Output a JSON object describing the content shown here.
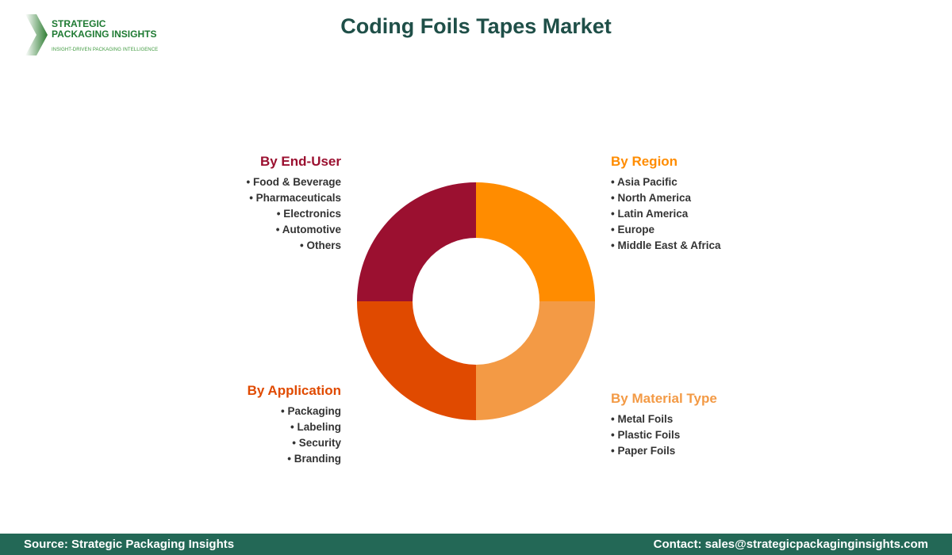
{
  "title": "Coding Foils Tapes Market",
  "logo": {
    "line1": "STRATEGIC",
    "line2": "PACKAGING INSIGHTS",
    "tagline": "INSIGHT-DRIVEN PACKAGING INTELLIGENCE"
  },
  "colors": {
    "region": "#FF8C00",
    "material": "#F39A45",
    "application": "#E04A00",
    "end_user": "#9B1030",
    "footer": "#236856",
    "title": "#1f4f48"
  },
  "segments": {
    "end_user": {
      "title": "By End-User",
      "items": [
        "Food & Beverage",
        "Pharmaceuticals",
        "Electronics",
        "Automotive",
        "Others"
      ]
    },
    "region": {
      "title": "By Region",
      "items": [
        "Asia Pacific",
        "North America",
        "Latin America",
        "Europe",
        "Middle East & Africa"
      ]
    },
    "application": {
      "title": "By Application",
      "items": [
        "Packaging",
        "Labeling",
        "Security",
        "Branding"
      ]
    },
    "material": {
      "title": "By Material Type",
      "items": [
        "Metal Foils",
        "Plastic Foils",
        "Paper Foils"
      ]
    }
  },
  "footer": {
    "source": "Source: Strategic Packaging Insights",
    "contact": "Contact: sales@strategicpackaginginsights.com"
  }
}
